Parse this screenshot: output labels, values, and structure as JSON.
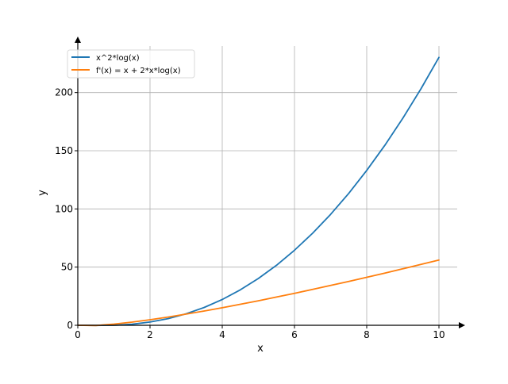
{
  "chart_data": {
    "type": "line",
    "title": "",
    "xlabel": "x",
    "ylabel": "y",
    "xlim": [
      0,
      10.5
    ],
    "ylim": [
      0,
      240
    ],
    "x_ticks": [
      0,
      2,
      4,
      6,
      8,
      10
    ],
    "y_ticks": [
      0,
      50,
      100,
      150,
      200
    ],
    "x_tick_labels": [
      "0",
      "2",
      "4",
      "6",
      "8",
      "10"
    ],
    "y_tick_labels": [
      "0",
      "50",
      "100",
      "150",
      "200"
    ],
    "grid": true,
    "legend_position": "top-left",
    "series": [
      {
        "name": "x^2*log(x)",
        "color": "#1f77b4",
        "x": [
          0,
          0.5,
          1,
          1.5,
          2,
          2.5,
          3,
          3.5,
          4,
          4.5,
          5,
          5.5,
          6,
          6.5,
          7,
          7.5,
          8,
          8.5,
          9,
          9.5,
          10
        ],
        "values": [
          0,
          -0.17,
          0,
          0.91,
          2.77,
          5.73,
          9.89,
          15.35,
          22.18,
          30.46,
          40.24,
          51.57,
          64.5,
          79.08,
          95.35,
          113.34,
          133.08,
          154.62,
          177.98,
          203.19,
          230.26
        ]
      },
      {
        "name": "f'(x) = x + 2*x*log(x)",
        "color": "#ff7f0e",
        "x": [
          0,
          0.5,
          1,
          1.5,
          2,
          2.5,
          3,
          3.5,
          4,
          4.5,
          5,
          5.5,
          6,
          6.5,
          7,
          7.5,
          8,
          8.5,
          9,
          9.5,
          10
        ],
        "values": [
          0,
          -0.19,
          1,
          2.72,
          4.77,
          7.08,
          9.59,
          12.27,
          15.09,
          18.04,
          21.09,
          24.25,
          27.5,
          30.83,
          34.24,
          37.72,
          41.27,
          44.88,
          48.55,
          52.27,
          56.05
        ]
      }
    ]
  }
}
